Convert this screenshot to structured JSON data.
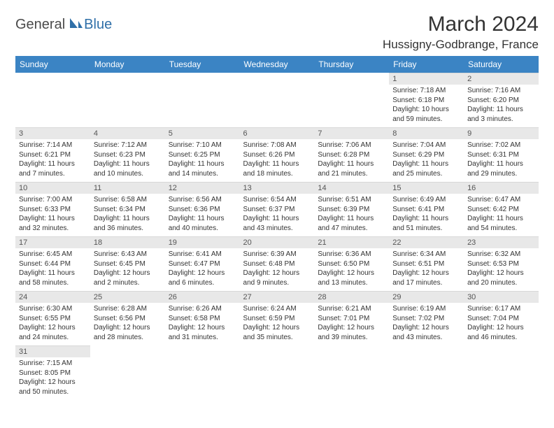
{
  "logo": {
    "text1": "General",
    "text2": "Blue"
  },
  "title": "March 2024",
  "location": "Hussigny-Godbrange, France",
  "colors": {
    "headerBg": "#3b84c4",
    "headerText": "#ffffff",
    "dayNumBg": "#e8e8e8",
    "bodyText": "#333333",
    "logoBlue": "#2f6fa8"
  },
  "dayHeaders": [
    "Sunday",
    "Monday",
    "Tuesday",
    "Wednesday",
    "Thursday",
    "Friday",
    "Saturday"
  ],
  "weeks": [
    [
      null,
      null,
      null,
      null,
      null,
      {
        "n": "1",
        "sr": "7:18 AM",
        "ss": "6:18 PM",
        "dl": "10 hours and 59 minutes."
      },
      {
        "n": "2",
        "sr": "7:16 AM",
        "ss": "6:20 PM",
        "dl": "11 hours and 3 minutes."
      }
    ],
    [
      {
        "n": "3",
        "sr": "7:14 AM",
        "ss": "6:21 PM",
        "dl": "11 hours and 7 minutes."
      },
      {
        "n": "4",
        "sr": "7:12 AM",
        "ss": "6:23 PM",
        "dl": "11 hours and 10 minutes."
      },
      {
        "n": "5",
        "sr": "7:10 AM",
        "ss": "6:25 PM",
        "dl": "11 hours and 14 minutes."
      },
      {
        "n": "6",
        "sr": "7:08 AM",
        "ss": "6:26 PM",
        "dl": "11 hours and 18 minutes."
      },
      {
        "n": "7",
        "sr": "7:06 AM",
        "ss": "6:28 PM",
        "dl": "11 hours and 21 minutes."
      },
      {
        "n": "8",
        "sr": "7:04 AM",
        "ss": "6:29 PM",
        "dl": "11 hours and 25 minutes."
      },
      {
        "n": "9",
        "sr": "7:02 AM",
        "ss": "6:31 PM",
        "dl": "11 hours and 29 minutes."
      }
    ],
    [
      {
        "n": "10",
        "sr": "7:00 AM",
        "ss": "6:33 PM",
        "dl": "11 hours and 32 minutes."
      },
      {
        "n": "11",
        "sr": "6:58 AM",
        "ss": "6:34 PM",
        "dl": "11 hours and 36 minutes."
      },
      {
        "n": "12",
        "sr": "6:56 AM",
        "ss": "6:36 PM",
        "dl": "11 hours and 40 minutes."
      },
      {
        "n": "13",
        "sr": "6:54 AM",
        "ss": "6:37 PM",
        "dl": "11 hours and 43 minutes."
      },
      {
        "n": "14",
        "sr": "6:51 AM",
        "ss": "6:39 PM",
        "dl": "11 hours and 47 minutes."
      },
      {
        "n": "15",
        "sr": "6:49 AM",
        "ss": "6:41 PM",
        "dl": "11 hours and 51 minutes."
      },
      {
        "n": "16",
        "sr": "6:47 AM",
        "ss": "6:42 PM",
        "dl": "11 hours and 54 minutes."
      }
    ],
    [
      {
        "n": "17",
        "sr": "6:45 AM",
        "ss": "6:44 PM",
        "dl": "11 hours and 58 minutes."
      },
      {
        "n": "18",
        "sr": "6:43 AM",
        "ss": "6:45 PM",
        "dl": "12 hours and 2 minutes."
      },
      {
        "n": "19",
        "sr": "6:41 AM",
        "ss": "6:47 PM",
        "dl": "12 hours and 6 minutes."
      },
      {
        "n": "20",
        "sr": "6:39 AM",
        "ss": "6:48 PM",
        "dl": "12 hours and 9 minutes."
      },
      {
        "n": "21",
        "sr": "6:36 AM",
        "ss": "6:50 PM",
        "dl": "12 hours and 13 minutes."
      },
      {
        "n": "22",
        "sr": "6:34 AM",
        "ss": "6:51 PM",
        "dl": "12 hours and 17 minutes."
      },
      {
        "n": "23",
        "sr": "6:32 AM",
        "ss": "6:53 PM",
        "dl": "12 hours and 20 minutes."
      }
    ],
    [
      {
        "n": "24",
        "sr": "6:30 AM",
        "ss": "6:55 PM",
        "dl": "12 hours and 24 minutes."
      },
      {
        "n": "25",
        "sr": "6:28 AM",
        "ss": "6:56 PM",
        "dl": "12 hours and 28 minutes."
      },
      {
        "n": "26",
        "sr": "6:26 AM",
        "ss": "6:58 PM",
        "dl": "12 hours and 31 minutes."
      },
      {
        "n": "27",
        "sr": "6:24 AM",
        "ss": "6:59 PM",
        "dl": "12 hours and 35 minutes."
      },
      {
        "n": "28",
        "sr": "6:21 AM",
        "ss": "7:01 PM",
        "dl": "12 hours and 39 minutes."
      },
      {
        "n": "29",
        "sr": "6:19 AM",
        "ss": "7:02 PM",
        "dl": "12 hours and 43 minutes."
      },
      {
        "n": "30",
        "sr": "6:17 AM",
        "ss": "7:04 PM",
        "dl": "12 hours and 46 minutes."
      }
    ],
    [
      {
        "n": "31",
        "sr": "7:15 AM",
        "ss": "8:05 PM",
        "dl": "12 hours and 50 minutes."
      },
      null,
      null,
      null,
      null,
      null,
      null
    ]
  ],
  "labels": {
    "sunrise": "Sunrise: ",
    "sunset": "Sunset: ",
    "daylight": "Daylight: "
  }
}
